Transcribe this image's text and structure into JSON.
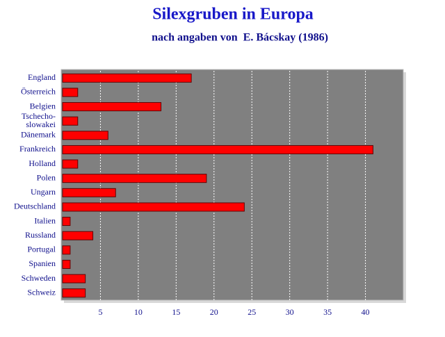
{
  "chart_data": {
    "type": "bar",
    "orientation": "horizontal",
    "title": "Silexgruben in Europa",
    "subtitle": "nach angaben von  E. Bácskay (1986)",
    "categories": [
      "England",
      "Österreich",
      "Belgien",
      "Tschecho-\nslowakei",
      "Dänemark",
      "Frankreich",
      "Holland",
      "Polen",
      "Ungarn",
      "Deutschland",
      "Italien",
      "Russland",
      "Portugal",
      "Spanien",
      "Schweden",
      "Schweiz"
    ],
    "values": [
      17,
      2,
      13,
      2,
      6,
      41,
      2,
      19,
      7,
      24,
      1,
      4,
      1,
      1,
      3,
      3
    ],
    "color": "#ff0000",
    "xlim": [
      0,
      45
    ],
    "xticks": [
      5,
      10,
      15,
      20,
      25,
      30,
      35,
      40
    ],
    "grid": true
  }
}
